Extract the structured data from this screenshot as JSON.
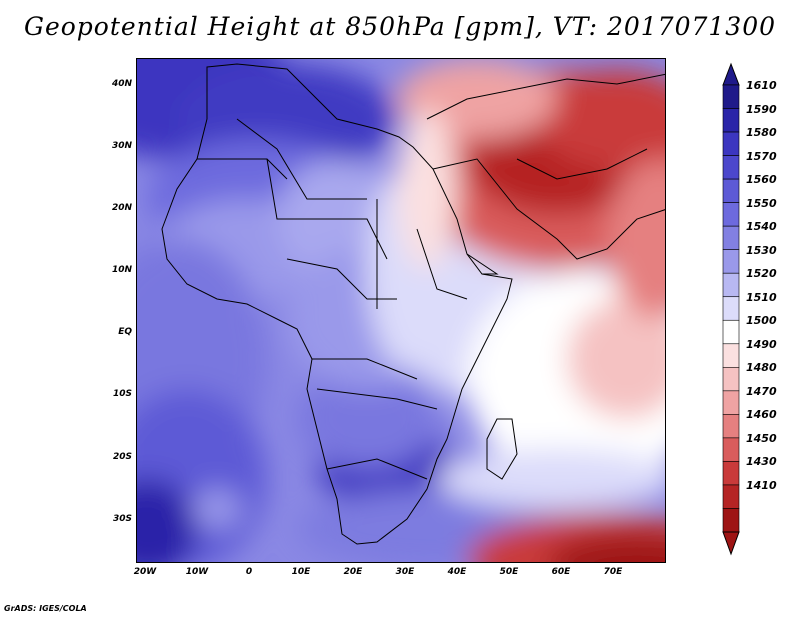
{
  "title": "Geopotential Height at 850hPa [gpm], VT: 2017071300",
  "credit": "GrADS: IGES/COLA",
  "map": {
    "variable": "Geopotential Height at 850hPa",
    "units": "gpm",
    "valid_time": "2017071300",
    "lat_labels": [
      "40N",
      "30N",
      "20N",
      "10N",
      "EQ",
      "10S",
      "20S",
      "30S"
    ],
    "lon_labels": [
      "20W",
      "10W",
      "0",
      "10E",
      "20E",
      "30E",
      "40E",
      "50E",
      "60E",
      "70E"
    ],
    "lat_values": [
      40,
      30,
      20,
      10,
      0,
      -10,
      -20,
      -30
    ],
    "lon_values": [
      -20,
      -10,
      0,
      10,
      20,
      30,
      40,
      50,
      60,
      70
    ],
    "extent": {
      "lon_min": -22,
      "lon_max": 80,
      "lat_min": -37,
      "lat_max": 45
    }
  },
  "colorbar": {
    "labels": [
      "1610",
      "1590",
      "1580",
      "1570",
      "1560",
      "1550",
      "1540",
      "1530",
      "1520",
      "1510",
      "1500",
      "1490",
      "1480",
      "1470",
      "1460",
      "1450",
      "1430",
      "1410"
    ],
    "colors": [
      "#1f1a8a",
      "#2a24a8",
      "#3c36c0",
      "#4c47cc",
      "#5d5ad6",
      "#6d6ade",
      "#8280e2",
      "#9a99ea",
      "#b8b8f2",
      "#dcdcfa",
      "#ffffff",
      "#fbe0e0",
      "#f5c2c2",
      "#efa3a3",
      "#e58080",
      "#d95c5c",
      "#c93a3a",
      "#b52424",
      "#9e1414"
    ]
  }
}
